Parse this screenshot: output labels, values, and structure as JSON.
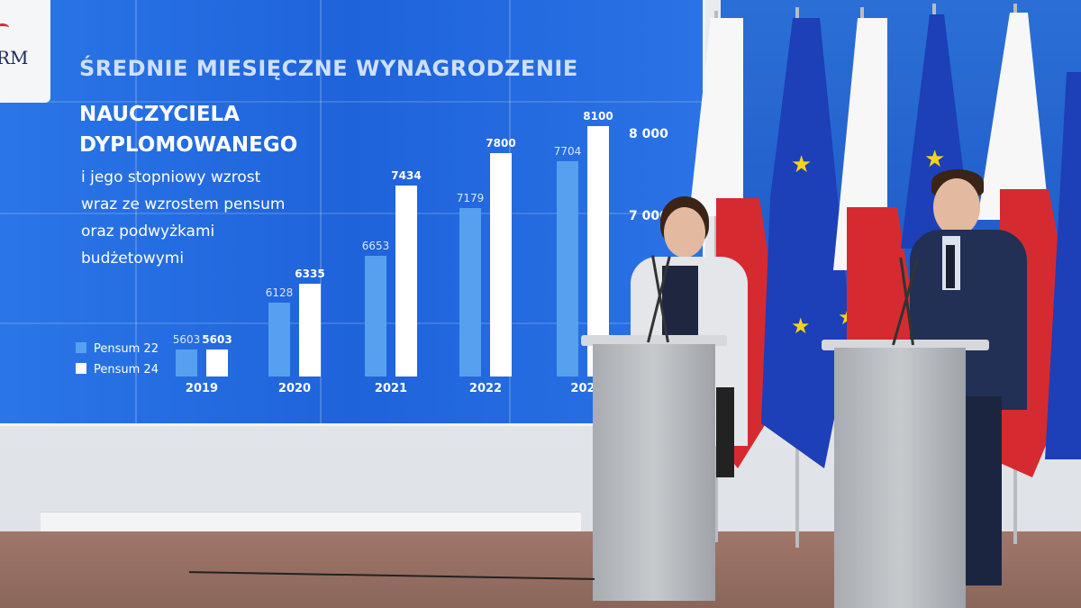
{
  "logo": {
    "text": "RM"
  },
  "slide": {
    "title_line1": "ŚREDNIE MIESIĘCZNE WYNAGRODZENIE",
    "title_line2": "NAUCZYCIELA",
    "title_line3": "DYPLOMOWANEGO",
    "subtitle_line1": "i jego stopniowy wzrost",
    "subtitle_line2": "wraz ze wzrostem pensum",
    "subtitle_line3": "oraz podwyżkami",
    "subtitle_line4": "budżetowymi",
    "legend": {
      "pensum22": "Pensum 22",
      "pensum24": "Pensum 24"
    },
    "axis_labels": [
      "8 000",
      "7 000"
    ],
    "colors": {
      "background": "#1f63da",
      "pensum22": "#57a0f0",
      "pensum24": "#ffffff"
    }
  },
  "chart_data": {
    "type": "bar",
    "categories": [
      "2019",
      "2020",
      "2021",
      "2022",
      "2023"
    ],
    "series": [
      {
        "name": "Pensum 22",
        "values": [
          5603,
          6128,
          6653,
          7179,
          7704
        ]
      },
      {
        "name": "Pensum 24",
        "values": [
          5603,
          6335,
          7434,
          7800,
          8100
        ]
      }
    ],
    "category_labels_visible": [
      "2019",
      "2020",
      "2021",
      "2022",
      "202"
    ],
    "value_labels_22": [
      "5603",
      "6128",
      "6653",
      "7179",
      "7704"
    ],
    "value_labels_24": [
      "5603",
      "6335",
      "7434",
      "7800",
      "8100"
    ],
    "title": "ŚREDNIE MIESIĘCZNE WYNAGRODZENIE NAUCZYCIELA DYPLOMOWANEGO"
  }
}
